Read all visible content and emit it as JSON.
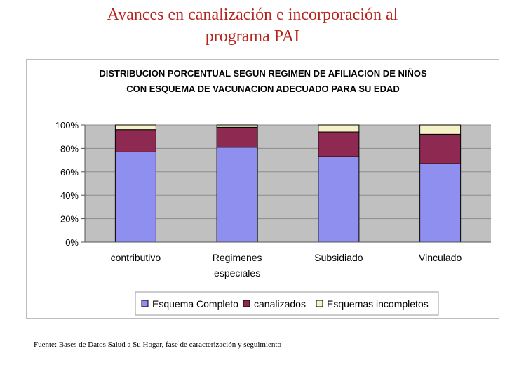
{
  "slide": {
    "title_line1": "Avances en canalización e incorporación al",
    "title_line2": "programa PAI"
  },
  "chart_data": {
    "type": "bar",
    "stacked": true,
    "percent": true,
    "title_line1": "DISTRIBUCION PORCENTUAL SEGUN REGIMEN DE AFILIACION DE NIÑOS",
    "title_line2": "CON ESQUEMA DE VACUNACION ADECUADO PARA SU EDAD",
    "categories": [
      {
        "line1": "contributivo",
        "line2": ""
      },
      {
        "line1": "Regimenes",
        "line2": "especiales"
      },
      {
        "line1": "Subsidiado",
        "line2": ""
      },
      {
        "line1": "Vinculado",
        "line2": ""
      }
    ],
    "series": [
      {
        "name": "Esquema Completo",
        "values": [
          77,
          81,
          73,
          67
        ],
        "color": "#8f8ff0"
      },
      {
        "name": "canalizados",
        "values": [
          19,
          17,
          21,
          25
        ],
        "color": "#8e2a52"
      },
      {
        "name": "Esquemas incompletos",
        "values": [
          4,
          2,
          6,
          8
        ],
        "color": "#f6f2c7"
      }
    ],
    "ylim": [
      0,
      100
    ],
    "yticks": [
      "0%",
      "20%",
      "40%",
      "60%",
      "80%",
      "100%"
    ],
    "grid": true,
    "legend": "bottom"
  },
  "footer": {
    "source": "Fuente:  Bases de Datos Salud a Su Hogar, fase de caracterización y seguimiento"
  }
}
